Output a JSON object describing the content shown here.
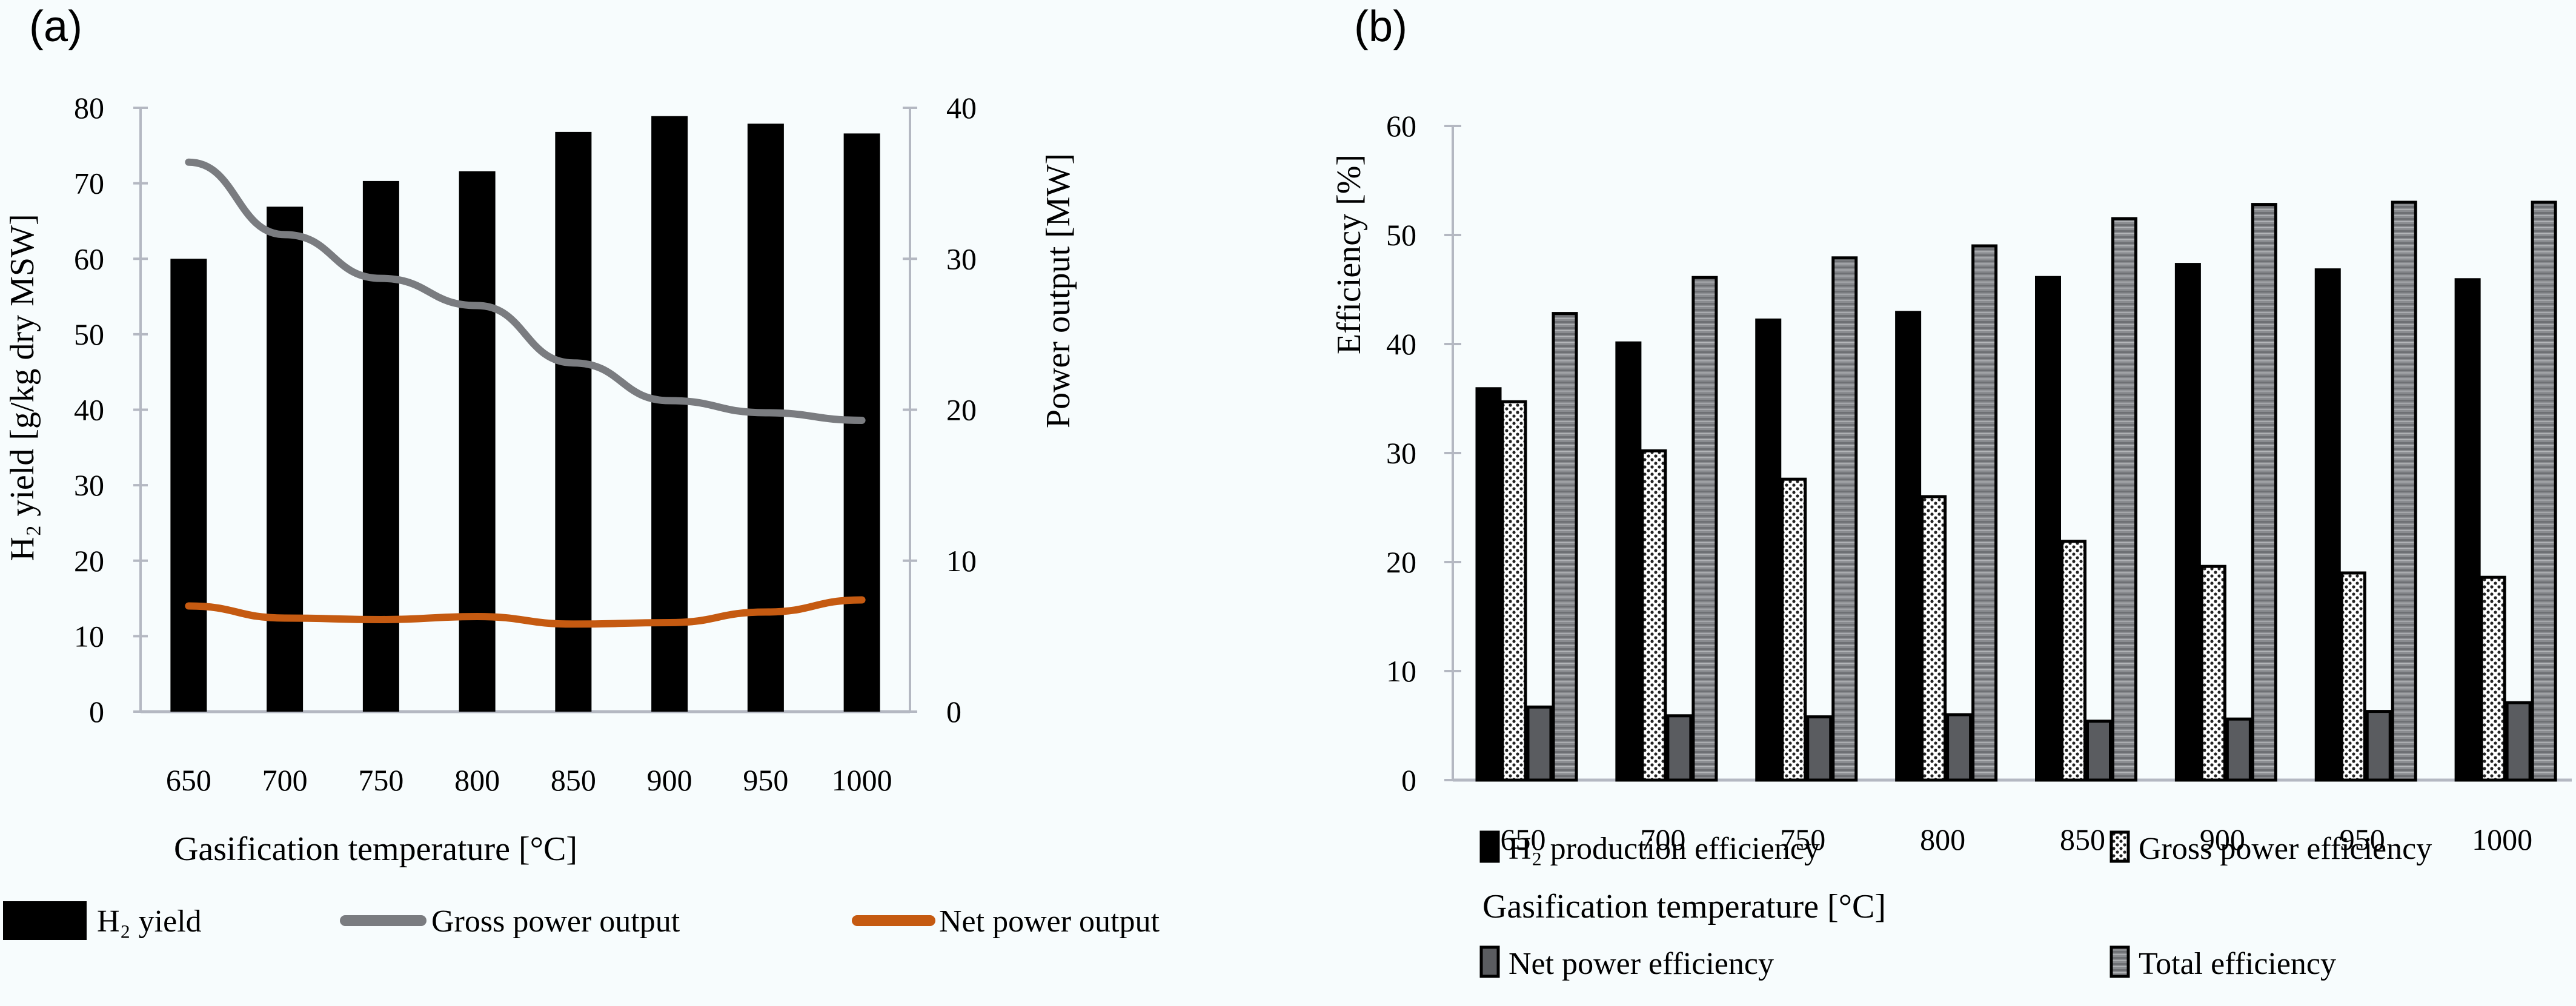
{
  "chart_data": [
    {
      "panel": "(a)",
      "type": "bar+line",
      "categories": [
        "650",
        "700",
        "750",
        "800",
        "850",
        "900",
        "950",
        "1000"
      ],
      "xlabel": "Gasification temperature [°C]",
      "ylabel_left": "H₂ yield [g/kg dry MSW]",
      "ylabel_right": "Power output [MW]",
      "ylim_left": [
        0,
        80
      ],
      "ylim_right": [
        0,
        40
      ],
      "yticks_left": [
        "0",
        "10",
        "20",
        "30",
        "40",
        "50",
        "60",
        "70",
        "80"
      ],
      "yticks_right": [
        "0",
        "10",
        "20",
        "30",
        "40"
      ],
      "grid": false,
      "legend_position": "bottom",
      "series": [
        {
          "name": "H₂ yield",
          "kind": "bar",
          "axis": "left",
          "color": "#000000",
          "values": [
            60.0,
            66.9,
            70.3,
            71.6,
            76.8,
            78.9,
            77.9,
            76.6
          ]
        },
        {
          "name": "Gross power output",
          "kind": "line",
          "axis": "right",
          "color": "#7a7c80",
          "values": [
            36.4,
            31.6,
            28.7,
            26.9,
            23.1,
            20.6,
            19.8,
            19.3
          ]
        },
        {
          "name": "Net power output",
          "kind": "line",
          "axis": "right",
          "color": "#c55a11",
          "values": [
            7.0,
            6.2,
            6.1,
            6.3,
            5.8,
            5.9,
            6.6,
            7.4
          ]
        }
      ]
    },
    {
      "panel": "(b)",
      "type": "bar",
      "categories": [
        "650",
        "700",
        "750",
        "800",
        "850",
        "900",
        "950",
        "1000"
      ],
      "xlabel": "Gasification temperature [°C]",
      "ylabel": "Efficiency [%]",
      "ylim": [
        0,
        60
      ],
      "yticks": [
        "0",
        "10",
        "20",
        "30",
        "40",
        "50",
        "60"
      ],
      "grid": false,
      "legend_position": "bottom",
      "series": [
        {
          "name": "H₂ production efficiency",
          "pattern": "solid-black",
          "values": [
            35.9,
            40.1,
            42.2,
            42.9,
            46.1,
            47.3,
            46.8,
            45.9
          ]
        },
        {
          "name": "Gross power efficiency",
          "pattern": "dotted-checker",
          "values": [
            34.7,
            30.2,
            27.6,
            26.0,
            21.9,
            19.6,
            19.0,
            18.6
          ]
        },
        {
          "name": "Net power efficiency",
          "pattern": "dark-gray",
          "values": [
            6.7,
            5.9,
            5.8,
            6.0,
            5.4,
            5.6,
            6.3,
            7.1
          ]
        },
        {
          "name": "Total efficiency",
          "pattern": "gray-stripes",
          "values": [
            42.8,
            46.1,
            47.9,
            49.0,
            51.5,
            52.8,
            53.0,
            53.0
          ]
        }
      ]
    }
  ]
}
